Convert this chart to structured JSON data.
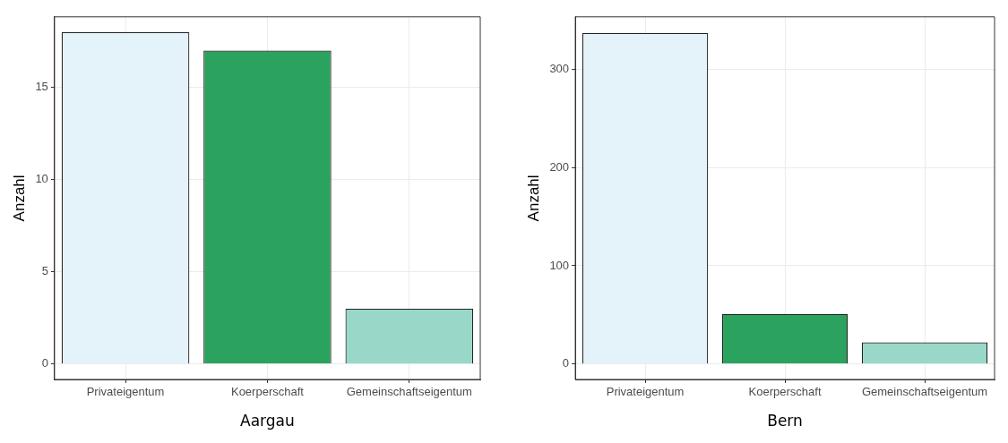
{
  "chart_data": [
    {
      "type": "bar",
      "categories": [
        "Privateigentum",
        "Koerperschaft",
        "Gemeinschaftseigentum"
      ],
      "values": [
        18,
        17,
        3
      ],
      "colors": [
        "#e4f3f9",
        "#2ca25f",
        "#99d8c9"
      ],
      "xlabel": "Aargau",
      "ylabel": "Anzahl",
      "ylim": [
        -0.84,
        18.83
      ],
      "yticks": [
        0,
        5,
        10,
        15
      ],
      "grid": true
    },
    {
      "type": "bar",
      "categories": [
        "Privateigentum",
        "Koerperschaft",
        "Gemeinschaftseigentum"
      ],
      "values": [
        337,
        51,
        22
      ],
      "colors": [
        "#e4f3f9",
        "#2ca25f",
        "#99d8c9"
      ],
      "xlabel": "Bern",
      "ylabel": "Anzahl",
      "ylim": [
        -15.7,
        353.4
      ],
      "yticks": [
        0,
        100,
        200,
        300
      ],
      "grid": true
    }
  ]
}
